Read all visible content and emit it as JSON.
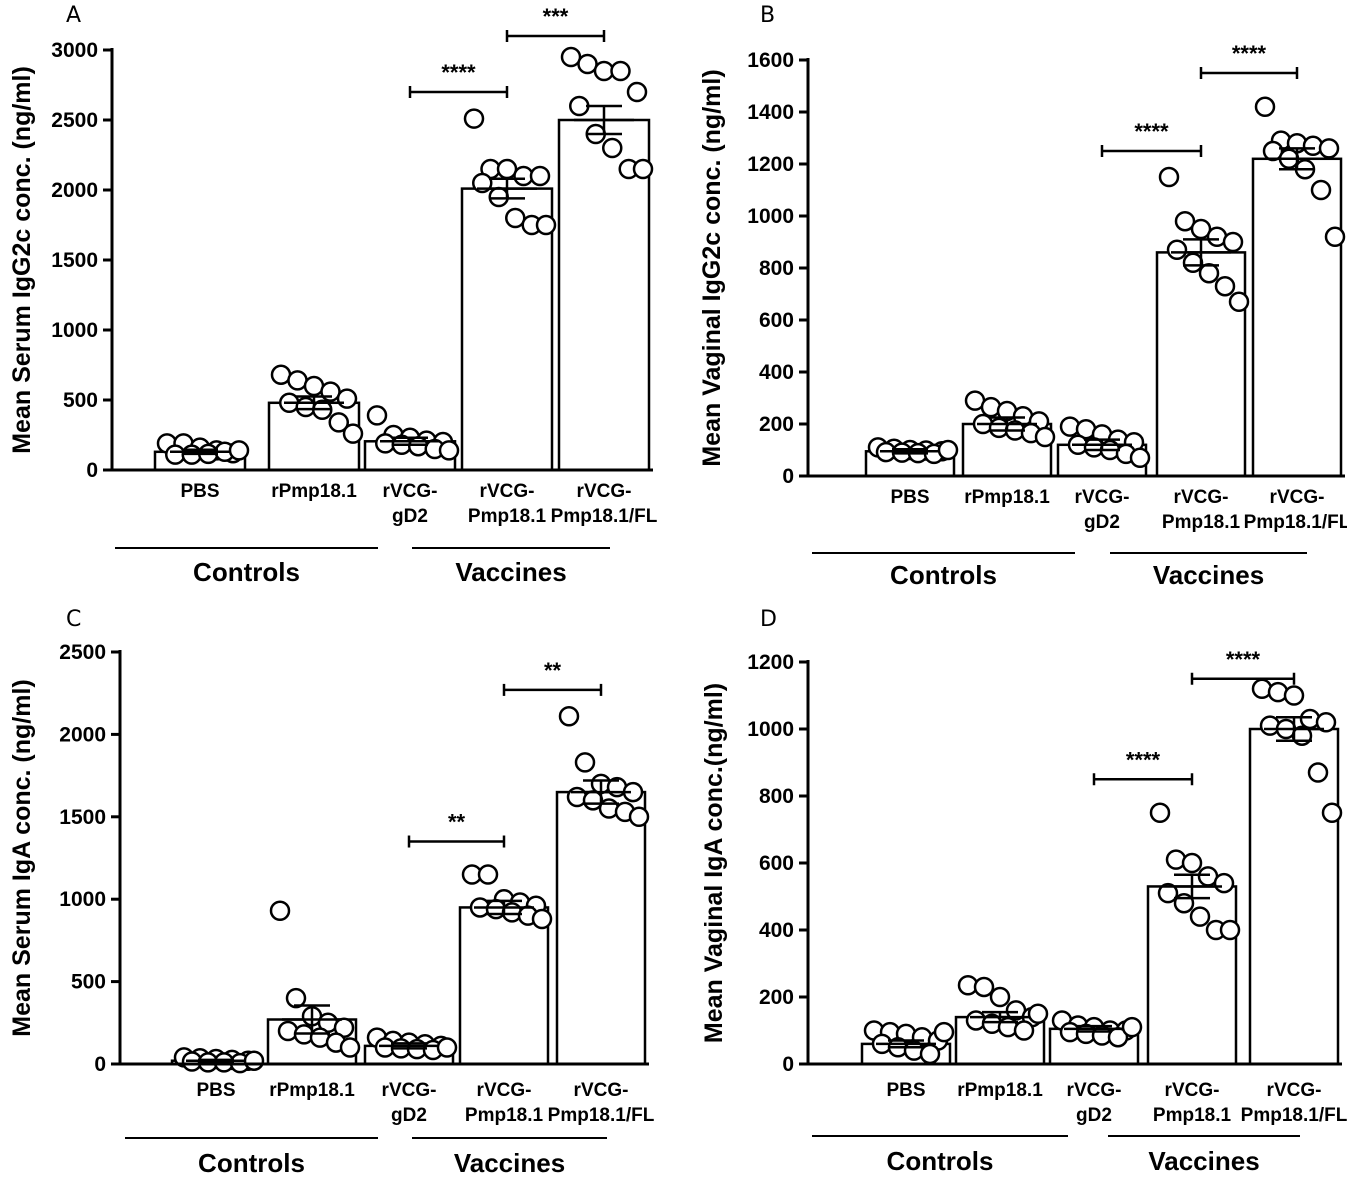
{
  "chart_data": [
    {
      "panel": "A",
      "type": "bar",
      "ylabel": "Mean Serum IgG2c conc. (ng/ml)",
      "ylim": [
        0,
        3000
      ],
      "yticks": [
        0,
        500,
        1000,
        1500,
        2000,
        2500,
        3000
      ],
      "categories": [
        [
          "PBS"
        ],
        [
          "rPmp18.1"
        ],
        [
          "rVCG-",
          "gD2"
        ],
        [
          "rVCG-",
          "Pmp18.1"
        ],
        [
          "rVCG-",
          "Pmp18.1/FL"
        ]
      ],
      "groups": [
        {
          "label": "Controls",
          "from": 0,
          "to": 2
        },
        {
          "label": "Vaccines",
          "from": 3,
          "to": 4
        }
      ],
      "means": [
        130,
        480,
        205,
        2010,
        2500
      ],
      "sem": [
        15,
        45,
        25,
        70,
        100
      ],
      "points": [
        [
          190,
          190,
          160,
          140,
          120,
          110,
          110,
          115,
          130,
          140
        ],
        [
          680,
          640,
          600,
          560,
          510,
          480,
          450,
          430,
          340,
          260
        ],
        [
          390,
          250,
          230,
          210,
          200,
          190,
          180,
          170,
          150,
          140
        ],
        [
          2510,
          2150,
          2150,
          2100,
          2100,
          2050,
          1950,
          1800,
          1750,
          1750
        ],
        [
          2950,
          2900,
          2850,
          2850,
          2700,
          2600,
          2400,
          2300,
          2150,
          2150
        ]
      ],
      "comparisons": [
        {
          "from": 2,
          "to": 3,
          "y": 2700,
          "label": "****"
        },
        {
          "from": 3,
          "to": 4,
          "y": 3100,
          "label": "***"
        }
      ]
    },
    {
      "panel": "B",
      "type": "bar",
      "ylabel": "Mean Vaginal IgG2c conc. (ng/ml)",
      "ylim": [
        0,
        1600
      ],
      "yticks": [
        0,
        200,
        400,
        600,
        800,
        1000,
        1200,
        1400,
        1600
      ],
      "categories": [
        [
          "PBS"
        ],
        [
          "rPmp18.1"
        ],
        [
          "rVCG-",
          "gD2"
        ],
        [
          "rVCG-",
          "Pmp18.1"
        ],
        [
          "rVCG-",
          "Pmp18.1/FL"
        ]
      ],
      "groups": [
        {
          "label": "Controls",
          "from": 0,
          "to": 2
        },
        {
          "label": "Vaccines",
          "from": 3,
          "to": 4
        }
      ],
      "means": [
        95,
        200,
        120,
        860,
        1220
      ],
      "sem": [
        8,
        25,
        20,
        50,
        40
      ],
      "points": [
        [
          110,
          105,
          100,
          98,
          95,
          92,
          90,
          88,
          85,
          100
        ],
        [
          290,
          265,
          250,
          230,
          210,
          200,
          185,
          175,
          165,
          150
        ],
        [
          190,
          180,
          160,
          140,
          130,
          120,
          110,
          100,
          85,
          70
        ],
        [
          1150,
          980,
          950,
          920,
          900,
          870,
          820,
          780,
          730,
          670
        ],
        [
          1420,
          1290,
          1280,
          1270,
          1260,
          1250,
          1220,
          1180,
          1100,
          920
        ]
      ],
      "comparisons": [
        {
          "from": 2,
          "to": 3,
          "y": 1250,
          "label": "****"
        },
        {
          "from": 3,
          "to": 4,
          "y": 1550,
          "label": "****"
        }
      ]
    },
    {
      "panel": "C",
      "type": "bar",
      "ylabel": "Mean Serum IgA conc. (ng/ml)",
      "ylim": [
        0,
        2500
      ],
      "yticks": [
        0,
        500,
        1000,
        1500,
        2000,
        2500
      ],
      "categories": [
        [
          "PBS"
        ],
        [
          "rPmp18.1"
        ],
        [
          "rVCG-",
          "gD2"
        ],
        [
          "rVCG-",
          "Pmp18.1"
        ],
        [
          "rVCG-",
          "Pmp18.1/FL"
        ]
      ],
      "groups": [
        {
          "label": "Controls",
          "from": 0,
          "to": 2
        },
        {
          "label": "Vaccines",
          "from": 3,
          "to": 4
        }
      ],
      "means": [
        20,
        270,
        110,
        950,
        1650
      ],
      "sem": [
        5,
        85,
        15,
        40,
        70
      ],
      "points": [
        [
          40,
          35,
          30,
          25,
          20,
          15,
          10,
          10,
          5,
          20
        ],
        [
          930,
          400,
          290,
          250,
          220,
          200,
          180,
          160,
          130,
          100
        ],
        [
          160,
          140,
          130,
          120,
          110,
          100,
          95,
          90,
          85,
          100
        ],
        [
          1150,
          1150,
          1000,
          980,
          960,
          950,
          940,
          920,
          900,
          880
        ],
        [
          2110,
          1830,
          1700,
          1680,
          1650,
          1620,
          1600,
          1550,
          1530,
          1500
        ]
      ],
      "comparisons": [
        {
          "from": 2,
          "to": 3,
          "y": 1350,
          "label": "**"
        },
        {
          "from": 3,
          "to": 4,
          "y": 2270,
          "label": "**"
        }
      ]
    },
    {
      "panel": "D",
      "type": "bar",
      "ylabel": "Mean Vaginal IgA conc.(ng/ml)",
      "ylim": [
        0,
        1200
      ],
      "yticks": [
        0,
        200,
        400,
        600,
        800,
        1000,
        1200
      ],
      "categories": [
        [
          "PBS"
        ],
        [
          "rPmp18.1"
        ],
        [
          "rVCG-",
          "gD2"
        ],
        [
          "rVCG-",
          "Pmp18.1"
        ],
        [
          "rVCG-",
          "Pmp18.1/FL"
        ]
      ],
      "groups": [
        {
          "label": "Controls",
          "from": 0,
          "to": 2
        },
        {
          "label": "Vaccines",
          "from": 3,
          "to": 4
        }
      ],
      "means": [
        60,
        140,
        105,
        530,
        1000
      ],
      "sem": [
        10,
        15,
        8,
        35,
        35
      ],
      "points": [
        [
          100,
          95,
          90,
          80,
          70,
          60,
          50,
          40,
          30,
          95
        ],
        [
          235,
          230,
          200,
          160,
          140,
          130,
          120,
          110,
          100,
          150
        ],
        [
          130,
          115,
          110,
          100,
          100,
          95,
          90,
          85,
          80,
          110
        ],
        [
          750,
          610,
          600,
          560,
          540,
          510,
          480,
          440,
          400,
          400
        ],
        [
          1120,
          1110,
          1100,
          1030,
          1020,
          1010,
          1000,
          980,
          870,
          750
        ]
      ],
      "comparisons": [
        {
          "from": 2,
          "to": 3,
          "y": 850,
          "label": "****"
        },
        {
          "from": 3,
          "to": 4,
          "y": 1150,
          "label": "****"
        }
      ]
    }
  ]
}
